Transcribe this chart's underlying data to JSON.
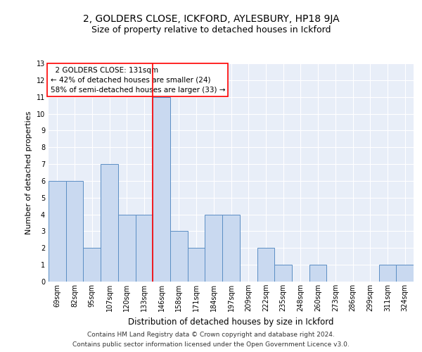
{
  "title_line1": "2, GOLDERS CLOSE, ICKFORD, AYLESBURY, HP18 9JA",
  "title_line2": "Size of property relative to detached houses in Ickford",
  "xlabel": "Distribution of detached houses by size in Ickford",
  "ylabel": "Number of detached properties",
  "categories": [
    "69sqm",
    "82sqm",
    "95sqm",
    "107sqm",
    "120sqm",
    "133sqm",
    "146sqm",
    "158sqm",
    "171sqm",
    "184sqm",
    "197sqm",
    "209sqm",
    "222sqm",
    "235sqm",
    "248sqm",
    "260sqm",
    "273sqm",
    "286sqm",
    "299sqm",
    "311sqm",
    "324sqm"
  ],
  "values": [
    6,
    6,
    2,
    7,
    4,
    4,
    11,
    3,
    2,
    4,
    4,
    0,
    2,
    1,
    0,
    1,
    0,
    0,
    0,
    1,
    1
  ],
  "bar_color": "#c9d9f0",
  "bar_edge_color": "#5b8ec4",
  "red_line_x": 5,
  "annotation_line1": "  2 GOLDERS CLOSE: 131sqm",
  "annotation_line2": "← 42% of detached houses are smaller (24)",
  "annotation_line3": "58% of semi-detached houses are larger (33) →",
  "annotation_box_color": "white",
  "annotation_box_edge_color": "red",
  "footer_line1": "Contains HM Land Registry data © Crown copyright and database right 2024.",
  "footer_line2": "Contains public sector information licensed under the Open Government Licence v3.0.",
  "ylim": [
    0,
    13
  ],
  "yticks": [
    0,
    1,
    2,
    3,
    4,
    5,
    6,
    7,
    8,
    9,
    10,
    11,
    12,
    13
  ],
  "background_color": "#e8eef8",
  "grid_color": "white",
  "title1_fontsize": 10,
  "title2_fontsize": 9,
  "ylabel_fontsize": 8,
  "xlabel_fontsize": 8.5,
  "tick_fontsize": 7,
  "annot_fontsize": 7.5,
  "footer_fontsize": 6.5
}
